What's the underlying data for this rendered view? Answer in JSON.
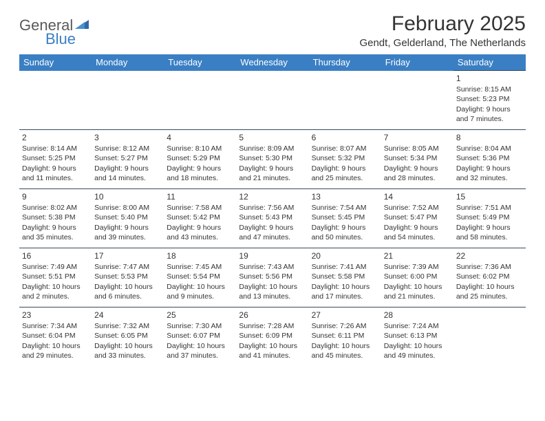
{
  "logo": {
    "part1": "General",
    "part2": "Blue"
  },
  "title": "February 2025",
  "location": "Gendt, Gelderland, The Netherlands",
  "colors": {
    "header_bg": "#3a7fc4",
    "header_text": "#ffffff",
    "cell_border": "#34495e",
    "body_text": "#333333",
    "logo_gray": "#5a5a5a",
    "logo_blue": "#3a7fc4",
    "page_bg": "#ffffff"
  },
  "typography": {
    "month_title_fontsize": 30,
    "location_fontsize": 15,
    "dayheader_fontsize": 13,
    "cell_fontsize": 10.5,
    "daynum_fontsize": 12
  },
  "day_headers": [
    "Sunday",
    "Monday",
    "Tuesday",
    "Wednesday",
    "Thursday",
    "Friday",
    "Saturday"
  ],
  "weeks": [
    [
      null,
      null,
      null,
      null,
      null,
      null,
      {
        "n": "1",
        "sunrise": "Sunrise: 8:15 AM",
        "sunset": "Sunset: 5:23 PM",
        "daylight": "Daylight: 9 hours and 7 minutes."
      }
    ],
    [
      {
        "n": "2",
        "sunrise": "Sunrise: 8:14 AM",
        "sunset": "Sunset: 5:25 PM",
        "daylight": "Daylight: 9 hours and 11 minutes."
      },
      {
        "n": "3",
        "sunrise": "Sunrise: 8:12 AM",
        "sunset": "Sunset: 5:27 PM",
        "daylight": "Daylight: 9 hours and 14 minutes."
      },
      {
        "n": "4",
        "sunrise": "Sunrise: 8:10 AM",
        "sunset": "Sunset: 5:29 PM",
        "daylight": "Daylight: 9 hours and 18 minutes."
      },
      {
        "n": "5",
        "sunrise": "Sunrise: 8:09 AM",
        "sunset": "Sunset: 5:30 PM",
        "daylight": "Daylight: 9 hours and 21 minutes."
      },
      {
        "n": "6",
        "sunrise": "Sunrise: 8:07 AM",
        "sunset": "Sunset: 5:32 PM",
        "daylight": "Daylight: 9 hours and 25 minutes."
      },
      {
        "n": "7",
        "sunrise": "Sunrise: 8:05 AM",
        "sunset": "Sunset: 5:34 PM",
        "daylight": "Daylight: 9 hours and 28 minutes."
      },
      {
        "n": "8",
        "sunrise": "Sunrise: 8:04 AM",
        "sunset": "Sunset: 5:36 PM",
        "daylight": "Daylight: 9 hours and 32 minutes."
      }
    ],
    [
      {
        "n": "9",
        "sunrise": "Sunrise: 8:02 AM",
        "sunset": "Sunset: 5:38 PM",
        "daylight": "Daylight: 9 hours and 35 minutes."
      },
      {
        "n": "10",
        "sunrise": "Sunrise: 8:00 AM",
        "sunset": "Sunset: 5:40 PM",
        "daylight": "Daylight: 9 hours and 39 minutes."
      },
      {
        "n": "11",
        "sunrise": "Sunrise: 7:58 AM",
        "sunset": "Sunset: 5:42 PM",
        "daylight": "Daylight: 9 hours and 43 minutes."
      },
      {
        "n": "12",
        "sunrise": "Sunrise: 7:56 AM",
        "sunset": "Sunset: 5:43 PM",
        "daylight": "Daylight: 9 hours and 47 minutes."
      },
      {
        "n": "13",
        "sunrise": "Sunrise: 7:54 AM",
        "sunset": "Sunset: 5:45 PM",
        "daylight": "Daylight: 9 hours and 50 minutes."
      },
      {
        "n": "14",
        "sunrise": "Sunrise: 7:52 AM",
        "sunset": "Sunset: 5:47 PM",
        "daylight": "Daylight: 9 hours and 54 minutes."
      },
      {
        "n": "15",
        "sunrise": "Sunrise: 7:51 AM",
        "sunset": "Sunset: 5:49 PM",
        "daylight": "Daylight: 9 hours and 58 minutes."
      }
    ],
    [
      {
        "n": "16",
        "sunrise": "Sunrise: 7:49 AM",
        "sunset": "Sunset: 5:51 PM",
        "daylight": "Daylight: 10 hours and 2 minutes."
      },
      {
        "n": "17",
        "sunrise": "Sunrise: 7:47 AM",
        "sunset": "Sunset: 5:53 PM",
        "daylight": "Daylight: 10 hours and 6 minutes."
      },
      {
        "n": "18",
        "sunrise": "Sunrise: 7:45 AM",
        "sunset": "Sunset: 5:54 PM",
        "daylight": "Daylight: 10 hours and 9 minutes."
      },
      {
        "n": "19",
        "sunrise": "Sunrise: 7:43 AM",
        "sunset": "Sunset: 5:56 PM",
        "daylight": "Daylight: 10 hours and 13 minutes."
      },
      {
        "n": "20",
        "sunrise": "Sunrise: 7:41 AM",
        "sunset": "Sunset: 5:58 PM",
        "daylight": "Daylight: 10 hours and 17 minutes."
      },
      {
        "n": "21",
        "sunrise": "Sunrise: 7:39 AM",
        "sunset": "Sunset: 6:00 PM",
        "daylight": "Daylight: 10 hours and 21 minutes."
      },
      {
        "n": "22",
        "sunrise": "Sunrise: 7:36 AM",
        "sunset": "Sunset: 6:02 PM",
        "daylight": "Daylight: 10 hours and 25 minutes."
      }
    ],
    [
      {
        "n": "23",
        "sunrise": "Sunrise: 7:34 AM",
        "sunset": "Sunset: 6:04 PM",
        "daylight": "Daylight: 10 hours and 29 minutes."
      },
      {
        "n": "24",
        "sunrise": "Sunrise: 7:32 AM",
        "sunset": "Sunset: 6:05 PM",
        "daylight": "Daylight: 10 hours and 33 minutes."
      },
      {
        "n": "25",
        "sunrise": "Sunrise: 7:30 AM",
        "sunset": "Sunset: 6:07 PM",
        "daylight": "Daylight: 10 hours and 37 minutes."
      },
      {
        "n": "26",
        "sunrise": "Sunrise: 7:28 AM",
        "sunset": "Sunset: 6:09 PM",
        "daylight": "Daylight: 10 hours and 41 minutes."
      },
      {
        "n": "27",
        "sunrise": "Sunrise: 7:26 AM",
        "sunset": "Sunset: 6:11 PM",
        "daylight": "Daylight: 10 hours and 45 minutes."
      },
      {
        "n": "28",
        "sunrise": "Sunrise: 7:24 AM",
        "sunset": "Sunset: 6:13 PM",
        "daylight": "Daylight: 10 hours and 49 minutes."
      },
      null
    ]
  ]
}
